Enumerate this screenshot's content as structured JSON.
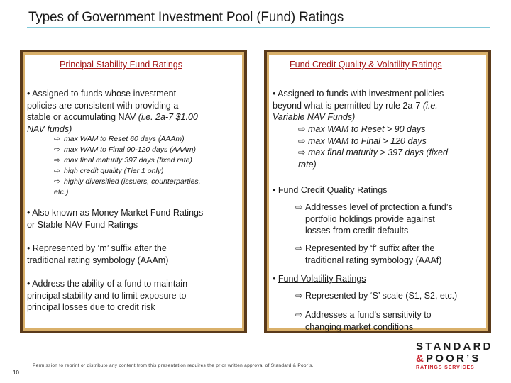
{
  "slide": {
    "title": "Types of Government Investment Pool (Fund) Ratings",
    "page_number": "10.",
    "footer": "Permission to reprint or distribute any content from this presentation requires the prior written approval of Standard & Poor’s."
  },
  "left_panel": {
    "heading": "Principal Stability Fund Ratings",
    "b1_line1": "• Assigned to funds whose investment",
    "b1_line2": "policies are consistent with providing a",
    "b1_line3": "stable or accumulating NAV",
    "b1_line3_it": " (i.e. 2a-7 $1.00",
    "b1_line4_it": "NAV funds)",
    "sub": [
      "max WAM to Reset 60 days (AAAm)",
      "max WAM to Final 90-120 days (AAAm)",
      "max final maturity 397 days (fixed rate)",
      "high credit quality (Tier 1 only)",
      "highly diversified (issuers, counterparties,",
      "etc.)"
    ],
    "b2_line1": "• Also known as Money Market Fund Ratings",
    "b2_line2": "or Stable NAV Fund Ratings",
    "b3_line1": "• Represented by ‘m’ suffix after the",
    "b3_line2": "traditional rating symbology (AAAm)",
    "b4_line1": "• Address the ability of a fund to maintain",
    "b4_line2": "principal stability and to limit exposure to",
    "b4_line3": "principal losses due to credit risk"
  },
  "right_panel": {
    "heading": "Fund Credit Quality & Volatility Ratings",
    "b1_line1": "• Assigned to funds with investment policies",
    "b1_line2": "beyond what is permitted by rule 2a-7",
    "b1_line2_it": " (i.e.",
    "b1_line3_it": "Variable NAV Funds)",
    "sub": [
      "max WAM to Reset > 90 days",
      "max WAM to Final > 120 days",
      "max final maturity > 397 days (fixed",
      "rate)"
    ],
    "cq_bullet": "• ",
    "cq_heading": "Fund Credit Quality Ratings",
    "cq_a_line1": "Addresses level of protection a fund’s",
    "cq_a_line2": "portfolio holdings provide against",
    "cq_a_line3": "losses from credit defaults",
    "cq_b_line1": "Represented by ‘f’ suffix after the",
    "cq_b_line2": "traditional rating symbology (AAAf)",
    "vol_bullet": "• ",
    "vol_heading": "Fund Volatility Ratings",
    "vol_a": "Represented by ‘S’ scale (S1, S2, etc.)",
    "vol_b_line1": "Addresses a fund’s sensitivity to",
    "vol_b_line2": "changing market conditions"
  },
  "logo": {
    "line1": "STANDARD",
    "amp": "&",
    "line2": "POOR’S",
    "sub": "RATINGS SERVICES"
  },
  "colors": {
    "accent_rule": "#7fc8d8",
    "heading_red": "#a31515",
    "panel_border": "#5a3a1a",
    "brand_red": "#c8232c"
  },
  "icons": {
    "sub_bullet": "arrow-right-outline-icon"
  }
}
